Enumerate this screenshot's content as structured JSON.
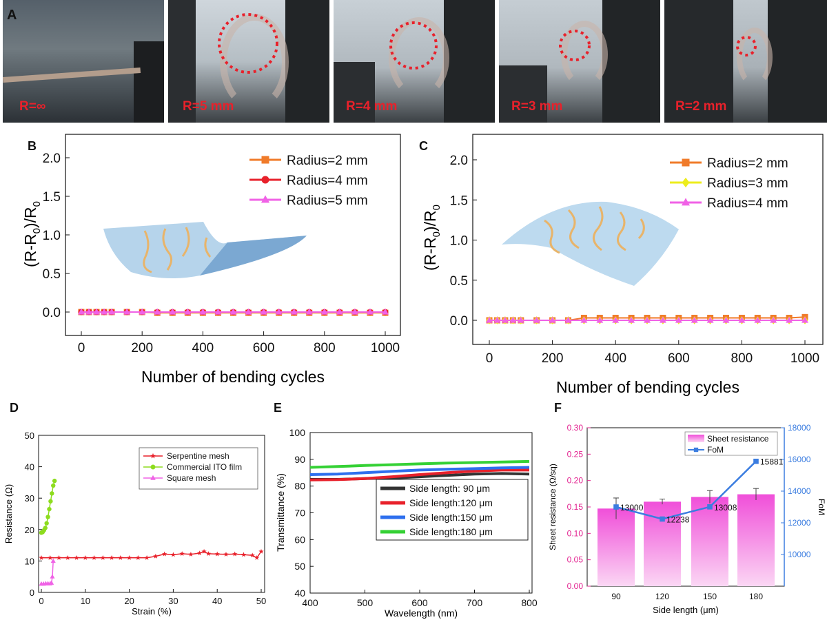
{
  "panel_labels": {
    "A": "A",
    "B": "B",
    "C": "C",
    "D": "D",
    "E": "E",
    "F": "F"
  },
  "photos": [
    {
      "label": "R=∞"
    },
    {
      "label": "R=5 mm"
    },
    {
      "label": "R=4 mm"
    },
    {
      "label": "R=3 mm"
    },
    {
      "label": "R=2 mm"
    }
  ],
  "colors": {
    "orange": "#f07b2a",
    "red": "#e8212b",
    "pink": "#f062e6",
    "yellow": "#eded1d",
    "black": "#333333",
    "blue": "#2e6fee",
    "green": "#35d135",
    "magenta": "#f26adf",
    "fom_blue": "#3b7de0"
  },
  "chart_data": [
    {
      "id": "B",
      "type": "line",
      "ylabel_main": "(R-R",
      "ylabel_sub": "0",
      "ylabel_mid": ")/R",
      "ylabel_sub2": "0",
      "xlabel": "Number of bending cycles",
      "xlim": [
        0,
        1000
      ],
      "ylim": [
        -0.3,
        2.3
      ],
      "xticks": [
        "0",
        "200",
        "400",
        "600",
        "800",
        "1000"
      ],
      "yticks": [
        "0.0",
        "0.5",
        "1.0",
        "1.5",
        "2.0"
      ],
      "x": [
        0,
        25,
        50,
        75,
        100,
        150,
        200,
        250,
        300,
        350,
        400,
        450,
        500,
        550,
        600,
        650,
        700,
        750,
        800,
        850,
        900,
        950,
        1000
      ],
      "series": [
        {
          "name": "Radius=2 mm",
          "marker": "square",
          "color": "#f07b2a",
          "values": [
            0.0,
            0.0,
            0.0,
            0.0,
            0.0,
            0.0,
            0.0,
            -0.01,
            -0.01,
            -0.01,
            -0.01,
            -0.01,
            -0.01,
            -0.01,
            -0.01,
            -0.01,
            -0.01,
            -0.01,
            -0.01,
            -0.01,
            -0.01,
            -0.01,
            -0.01
          ]
        },
        {
          "name": "Radius=4 mm",
          "marker": "circle",
          "color": "#e8212b",
          "values": [
            0.0,
            0.0,
            0.0,
            0.0,
            0.0,
            0.0,
            0.0,
            0.0,
            0.0,
            0.0,
            0.0,
            0.0,
            0.0,
            0.0,
            0.0,
            0.0,
            0.0,
            0.0,
            0.0,
            0.0,
            0.0,
            0.0,
            0.0
          ]
        },
        {
          "name": "Radius=5 mm",
          "marker": "triangle",
          "color": "#f062e6",
          "values": [
            0.0,
            0.0,
            0.0,
            0.0,
            0.0,
            0.0,
            0.0,
            0.0,
            0.0,
            0.0,
            0.0,
            0.0,
            0.0,
            0.0,
            0.0,
            0.0,
            0.0,
            0.0,
            0.0,
            0.0,
            0.0,
            0.0,
            0.0
          ]
        }
      ]
    },
    {
      "id": "C",
      "type": "line",
      "ylabel_main": "(R-R",
      "ylabel_sub": "0",
      "ylabel_mid": ")/R",
      "ylabel_sub2": "0",
      "xlabel": "Number of bending cycles",
      "xlim": [
        0,
        1000
      ],
      "ylim": [
        -0.2,
        2.3
      ],
      "xticks": [
        "0",
        "200",
        "400",
        "600",
        "800",
        "1000"
      ],
      "yticks": [
        "0.0",
        "0.5",
        "1.0",
        "1.5",
        "2.0"
      ],
      "x": [
        0,
        25,
        50,
        75,
        100,
        150,
        200,
        250,
        300,
        350,
        400,
        450,
        500,
        550,
        600,
        650,
        700,
        750,
        800,
        850,
        900,
        950,
        1000
      ],
      "series": [
        {
          "name": "Radius=2 mm",
          "marker": "square",
          "color": "#f07b2a",
          "values": [
            0.0,
            0.0,
            0.0,
            0.0,
            0.0,
            0.0,
            0.0,
            0.0,
            0.03,
            0.03,
            0.03,
            0.03,
            0.03,
            0.03,
            0.03,
            0.03,
            0.03,
            0.03,
            0.03,
            0.03,
            0.03,
            0.03,
            0.04
          ]
        },
        {
          "name": "Radius=3 mm",
          "marker": "diamond",
          "color": "#eded1d",
          "values": [
            0.0,
            0.0,
            0.0,
            0.0,
            0.0,
            0.0,
            0.0,
            0.0,
            0.0,
            0.0,
            0.0,
            0.0,
            0.0,
            0.0,
            0.0,
            0.0,
            0.0,
            0.0,
            0.0,
            0.0,
            0.0,
            0.0,
            0.0
          ]
        },
        {
          "name": "Radius=4 mm",
          "marker": "triangle",
          "color": "#f062e6",
          "values": [
            0.0,
            0.0,
            0.0,
            0.0,
            0.0,
            0.0,
            0.0,
            0.0,
            0.0,
            0.0,
            0.0,
            0.0,
            0.0,
            0.0,
            0.0,
            0.0,
            0.0,
            0.0,
            0.0,
            0.0,
            0.0,
            0.0,
            0.0
          ]
        }
      ]
    },
    {
      "id": "D",
      "type": "line",
      "xlabel": "Strain (%)",
      "ylabel": "Resistance (Ω)",
      "xlim": [
        -1,
        51
      ],
      "ylim": [
        0,
        50
      ],
      "xticks": [
        "0",
        "10",
        "20",
        "30",
        "40",
        "50"
      ],
      "yticks": [
        "0",
        "10",
        "20",
        "30",
        "40",
        "50"
      ],
      "series": [
        {
          "name": "Serpentine mesh",
          "marker": "star",
          "color": "#e8212b",
          "x": [
            0,
            2,
            4,
            6,
            8,
            10,
            12,
            14,
            16,
            18,
            20,
            22,
            24,
            26,
            28,
            30,
            32,
            34,
            36,
            37,
            38,
            40,
            42,
            44,
            46,
            48,
            49,
            50
          ],
          "y": [
            11,
            11,
            11,
            11,
            11,
            11,
            11,
            11,
            11,
            11,
            11,
            11,
            11,
            11.5,
            12.2,
            12,
            12.3,
            12.1,
            12.5,
            13,
            12.3,
            12.2,
            12.1,
            12.2,
            12.0,
            11.8,
            11,
            13
          ]
        },
        {
          "name": "Commercial ITO film",
          "marker": "circle",
          "color": "#8ddc1e",
          "x": [
            0,
            0.3,
            0.6,
            0.9,
            1.2,
            1.5,
            1.8,
            2.1,
            2.4,
            2.7,
            3.0
          ],
          "y": [
            19,
            19.2,
            19.8,
            20.5,
            22,
            24,
            26.5,
            29,
            31.5,
            34,
            35.5
          ]
        },
        {
          "name": "Square mesh",
          "marker": "triangle",
          "color": "#f062e6",
          "x": [
            0,
            0.5,
            1,
            1.5,
            2,
            2.3,
            2.5,
            2.7
          ],
          "y": [
            2.7,
            2.7,
            2.8,
            2.8,
            2.8,
            3,
            5,
            10
          ]
        }
      ]
    },
    {
      "id": "E",
      "type": "line",
      "xlabel": "Wavelength (nm)",
      "ylabel": "Transmittance (%)",
      "xlim": [
        400,
        800
      ],
      "ylim": [
        40,
        100
      ],
      "xticks": [
        "400",
        "500",
        "600",
        "700",
        "800"
      ],
      "yticks": [
        "40",
        "50",
        "60",
        "70",
        "80",
        "90",
        "100"
      ],
      "x": [
        400,
        450,
        500,
        550,
        600,
        650,
        700,
        750,
        800
      ],
      "series": [
        {
          "name": "Side length:  90  μm",
          "color": "#333333",
          "values": [
            82.5,
            82.5,
            82.8,
            83.0,
            83.5,
            84.0,
            84.5,
            84.7,
            84.5
          ]
        },
        {
          "name": "Side length:120  μm",
          "color": "#e8212b",
          "values": [
            82.3,
            82.4,
            82.8,
            83.5,
            84.3,
            85.0,
            85.6,
            86.0,
            86.0
          ]
        },
        {
          "name": "Side length:150  μm",
          "color": "#2e6fee",
          "values": [
            84.3,
            84.5,
            85.0,
            85.5,
            86.0,
            86.3,
            86.5,
            86.8,
            87.0
          ]
        },
        {
          "name": "Side length:180  μm",
          "color": "#35d135",
          "values": [
            87.0,
            87.3,
            87.7,
            88.0,
            88.3,
            88.6,
            88.8,
            89.0,
            89.2
          ]
        }
      ]
    },
    {
      "id": "F",
      "type": "bar",
      "xlabel": "Side length (μm)",
      "ylabel": "Sheet resistance (Ω/sq)",
      "ylabel_right": "FoM",
      "categories": [
        "90",
        "120",
        "150",
        "180"
      ],
      "ylim": [
        0,
        0.3
      ],
      "ylim_right": [
        8000,
        18000
      ],
      "yticks": [
        "0.00",
        "0.05",
        "0.10",
        "0.15",
        "0.20",
        "0.25",
        "0.30"
      ],
      "yticks_right": [
        "10000",
        "12000",
        "14000",
        "16000",
        "18000"
      ],
      "series": [
        {
          "name": "Sheet resistance",
          "type": "bar",
          "color": "#f26adf",
          "values": [
            0.147,
            0.16,
            0.169,
            0.174
          ],
          "errors": [
            0.02,
            0.005,
            0.012,
            0.011
          ]
        },
        {
          "name": "FoM",
          "type": "line",
          "color": "#3b7de0",
          "values": [
            13000,
            12238,
            13008,
            15881
          ],
          "labels": [
            "13000",
            "12238",
            "13008",
            "15881"
          ]
        }
      ]
    }
  ]
}
